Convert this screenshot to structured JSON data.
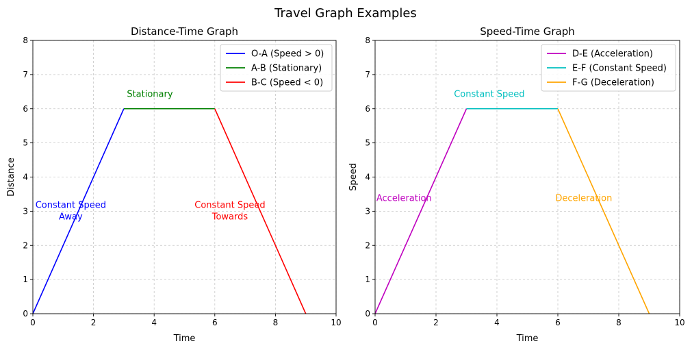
{
  "figure": {
    "suptitle": "Travel Graph Examples"
  },
  "chart_data": [
    {
      "type": "line",
      "title": "Distance-Time Graph",
      "xlabel": "Time",
      "ylabel": "Distance",
      "xlim": [
        0,
        10
      ],
      "ylim": [
        0,
        8
      ],
      "xticks": [
        "0",
        "2",
        "4",
        "6",
        "8",
        "10"
      ],
      "yticks": [
        "0",
        "1",
        "2",
        "3",
        "4",
        "5",
        "6",
        "7",
        "8"
      ],
      "grid": true,
      "legend_position": "top-right",
      "series": [
        {
          "name": "O-A (Speed > 0)",
          "color": "#0000ff",
          "x": [
            0,
            3
          ],
          "y": [
            0,
            6
          ]
        },
        {
          "name": "A-B (Stationary)",
          "color": "#008000",
          "x": [
            3,
            6
          ],
          "y": [
            6,
            6
          ]
        },
        {
          "name": "B-C (Speed < 0)",
          "color": "#ff0000",
          "x": [
            6,
            9
          ],
          "y": [
            6,
            0
          ]
        }
      ],
      "annotations": [
        {
          "lines": [
            "Stationary"
          ],
          "x": 3.1,
          "y": 6.35,
          "color": "#008000",
          "align": "start"
        },
        {
          "lines": [
            "Constant Speed",
            "Away"
          ],
          "x": 1.25,
          "y": 3.1,
          "color": "#0000ff",
          "align": "middle"
        },
        {
          "lines": [
            "Constant Speed",
            "Towards"
          ],
          "x": 6.5,
          "y": 3.1,
          "color": "#ff0000",
          "align": "middle"
        }
      ]
    },
    {
      "type": "line",
      "title": "Speed-Time Graph",
      "xlabel": "Time",
      "ylabel": "Speed",
      "xlim": [
        0,
        10
      ],
      "ylim": [
        0,
        8
      ],
      "xticks": [
        "0",
        "2",
        "4",
        "6",
        "8",
        "10"
      ],
      "yticks": [
        "0",
        "1",
        "2",
        "3",
        "4",
        "5",
        "6",
        "7",
        "8"
      ],
      "grid": true,
      "legend_position": "top-right",
      "series": [
        {
          "name": "D-E (Acceleration)",
          "color": "#bf00bf",
          "x": [
            0,
            3
          ],
          "y": [
            0,
            6
          ]
        },
        {
          "name": "E-F (Constant Speed)",
          "color": "#00bfbf",
          "x": [
            3,
            6
          ],
          "y": [
            6,
            6
          ]
        },
        {
          "name": "F-G (Deceleration)",
          "color": "#ffa500",
          "x": [
            6,
            9
          ],
          "y": [
            6,
            0
          ]
        }
      ],
      "annotations": [
        {
          "lines": [
            "Constant Speed"
          ],
          "x": 3.75,
          "y": 6.35,
          "color": "#00bfbf",
          "align": "middle"
        },
        {
          "lines": [
            "Acceleration"
          ],
          "x": 0.95,
          "y": 3.3,
          "color": "#bf00bf",
          "align": "middle"
        },
        {
          "lines": [
            "Deceleration"
          ],
          "x": 6.85,
          "y": 3.3,
          "color": "#ffa500",
          "align": "middle"
        }
      ]
    }
  ]
}
